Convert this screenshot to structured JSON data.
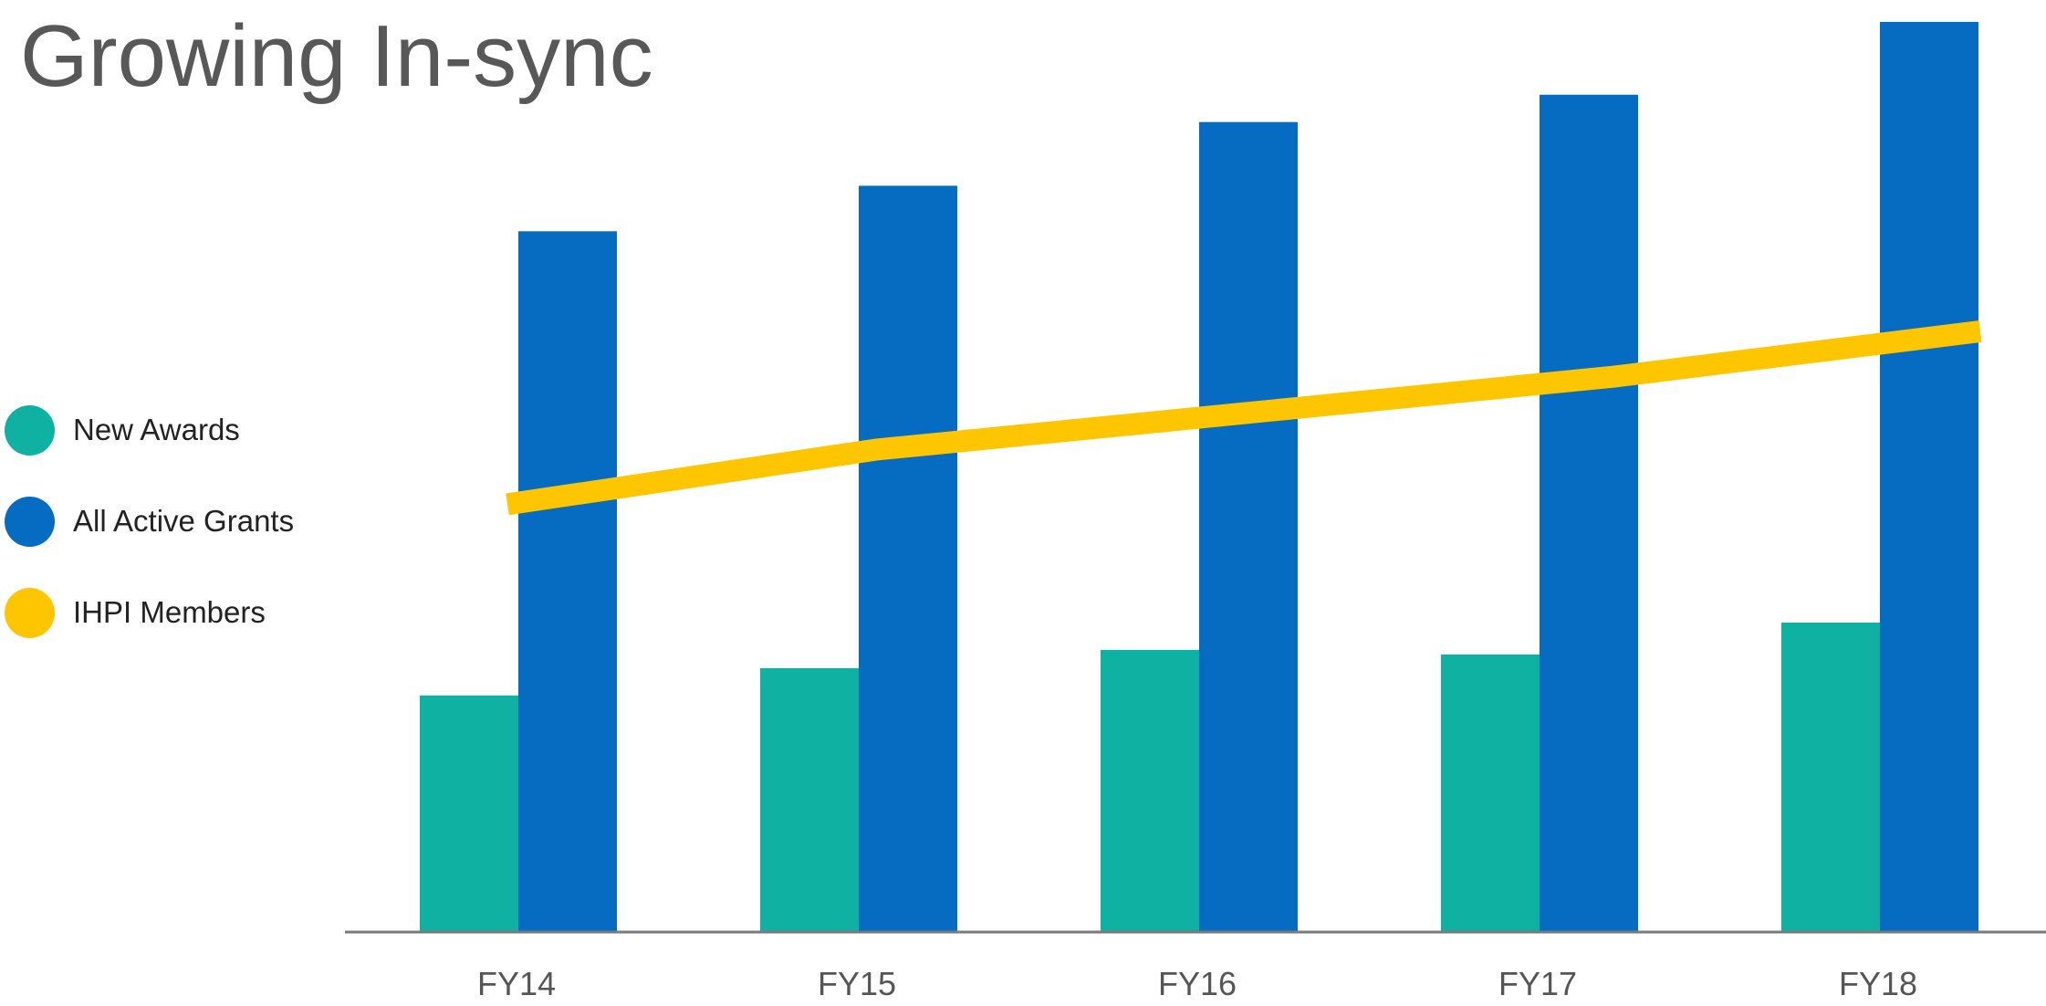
{
  "title": "Growing In-sync",
  "legend": [
    {
      "label": "New Awards",
      "color": "#0fb1a3"
    },
    {
      "label": "All Active Grants",
      "color": "#066cc2"
    },
    {
      "label": "IHPI Members",
      "color": "#fdc600"
    }
  ],
  "chart_data": {
    "type": "bar",
    "categories": [
      "FY14",
      "FY15",
      "FY16",
      "FY17",
      "FY18"
    ],
    "series": [
      {
        "name": "New Awards",
        "type": "bar",
        "color": "#0fb1a3",
        "values": [
          26,
          29,
          31,
          30.5,
          34
        ]
      },
      {
        "name": "All Active Grants",
        "type": "bar",
        "color": "#066cc2",
        "values": [
          77,
          82,
          89,
          92,
          100
        ]
      },
      {
        "name": "IHPI Members",
        "type": "line",
        "color": "#fdc600",
        "values": [
          47,
          53,
          57,
          61,
          66
        ]
      }
    ],
    "xlabel": "",
    "ylabel": "",
    "ylim": [
      0,
      100
    ],
    "grid": false,
    "legend_position": "left"
  }
}
